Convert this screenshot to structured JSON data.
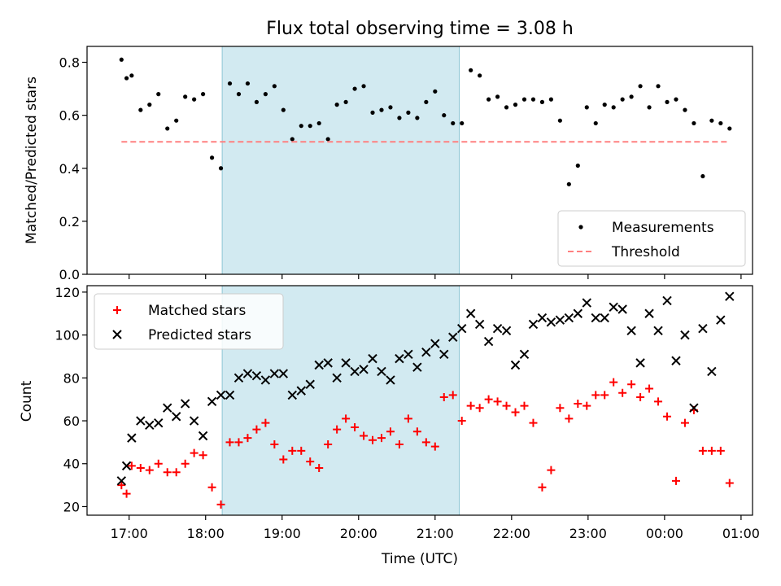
{
  "chart_data": [
    {
      "type": "scatter",
      "title": "Flux total observing time = 3.08 h",
      "xlabel": "",
      "ylabel": "Matched/Predicted stars",
      "ylim": [
        0,
        0.86
      ],
      "yticks": [
        0,
        0.2,
        0.4,
        0.6,
        0.8
      ],
      "ytick_labels": [
        "0.0",
        "0.2",
        "0.4",
        "0.6",
        "0.8"
      ],
      "x_unit": "hours since 00:00 UTC of first night",
      "legend_position": "lower-right",
      "shaded_interval": [
        "18:13",
        "21:19"
      ],
      "shaded_color": "#add8e6",
      "series": [
        {
          "name": "Measurements",
          "marker": "dot",
          "color": "#000000",
          "x": [
            "16:54",
            "16:58",
            "17:02",
            "17:09",
            "17:16",
            "17:23",
            "17:30",
            "17:37",
            "17:44",
            "17:51",
            "17:58",
            "18:05",
            "18:12",
            "18:19",
            "18:26",
            "18:33",
            "18:40",
            "18:47",
            "18:54",
            "19:01",
            "19:08",
            "19:15",
            "19:22",
            "19:29",
            "19:36",
            "19:43",
            "19:50",
            "19:57",
            "20:04",
            "20:11",
            "20:18",
            "20:25",
            "20:32",
            "20:39",
            "20:46",
            "20:53",
            "21:00",
            "21:07",
            "21:14",
            "21:21",
            "21:28",
            "21:35",
            "21:42",
            "21:49",
            "21:56",
            "22:03",
            "22:10",
            "22:17",
            "22:24",
            "22:31",
            "22:38",
            "22:45",
            "22:52",
            "22:59",
            "23:06",
            "23:13",
            "23:20",
            "23:27",
            "23:34",
            "23:41",
            "23:48",
            "23:55",
            "00:02",
            "00:09",
            "00:16",
            "00:23",
            "00:30",
            "00:37",
            "00:44",
            "00:51"
          ],
          "y": [
            0.81,
            0.74,
            0.75,
            0.62,
            0.64,
            0.68,
            0.55,
            0.58,
            0.67,
            0.66,
            0.68,
            0.44,
            0.4,
            0.72,
            0.68,
            0.72,
            0.65,
            0.68,
            0.71,
            0.62,
            0.51,
            0.56,
            0.56,
            0.57,
            0.51,
            0.64,
            0.65,
            0.7,
            0.71,
            0.61,
            0.62,
            0.63,
            0.59,
            0.61,
            0.59,
            0.65,
            0.69,
            0.6,
            0.57,
            0.57,
            0.77,
            0.75,
            0.66,
            0.67,
            0.63,
            0.64,
            0.66,
            0.66,
            0.65,
            0.66,
            0.58,
            0.34,
            0.41,
            0.63,
            0.57,
            0.64,
            0.63,
            0.66,
            0.67,
            0.71,
            0.63,
            0.71,
            0.65,
            0.66,
            0.62,
            0.57,
            0.37,
            0.58,
            0.57,
            0.55
          ]
        },
        {
          "name": "Threshold",
          "style": "dashed",
          "color": "#ff8080",
          "x": [
            "16:54",
            "00:51"
          ],
          "y": [
            0.5,
            0.5
          ]
        }
      ]
    },
    {
      "type": "scatter",
      "title": "",
      "xlabel": "Time (UTC)",
      "ylabel": "Count",
      "ylim": [
        16,
        123
      ],
      "yticks": [
        20,
        40,
        60,
        80,
        100,
        120
      ],
      "ytick_labels": [
        "20",
        "40",
        "60",
        "80",
        "100",
        "120"
      ],
      "x_ticks": [
        "17:00",
        "18:00",
        "19:00",
        "20:00",
        "21:00",
        "22:00",
        "23:00",
        "00:00",
        "01:00"
      ],
      "legend_position": "upper-left",
      "shaded_interval": [
        "18:13",
        "21:19"
      ],
      "shaded_color": "#add8e6",
      "series": [
        {
          "name": "Matched stars",
          "marker": "plus",
          "color": "#ff0000",
          "x": [
            "16:54",
            "16:58",
            "17:02",
            "17:09",
            "17:16",
            "17:23",
            "17:30",
            "17:37",
            "17:44",
            "17:51",
            "17:58",
            "18:05",
            "18:12",
            "18:19",
            "18:26",
            "18:33",
            "18:40",
            "18:47",
            "18:54",
            "19:01",
            "19:08",
            "19:15",
            "19:22",
            "19:29",
            "19:36",
            "19:43",
            "19:50",
            "19:57",
            "20:04",
            "20:11",
            "20:18",
            "20:25",
            "20:32",
            "20:39",
            "20:46",
            "20:53",
            "21:00",
            "21:07",
            "21:14",
            "21:21",
            "21:28",
            "21:35",
            "21:42",
            "21:49",
            "21:56",
            "22:03",
            "22:10",
            "22:17",
            "22:24",
            "22:31",
            "22:38",
            "22:45",
            "22:52",
            "22:59",
            "23:06",
            "23:13",
            "23:20",
            "23:27",
            "23:34",
            "23:41",
            "23:48",
            "23:55",
            "00:02",
            "00:09",
            "00:16",
            "00:23",
            "00:30",
            "00:37",
            "00:44",
            "00:51"
          ],
          "y": [
            30,
            26,
            39,
            38,
            37,
            40,
            36,
            36,
            40,
            45,
            44,
            29,
            21,
            50,
            50,
            52,
            56,
            59,
            49,
            42,
            46,
            46,
            41,
            38,
            49,
            56,
            61,
            57,
            53,
            51,
            52,
            55,
            49,
            61,
            55,
            50,
            48,
            71,
            72,
            60,
            67,
            66,
            70,
            69,
            67,
            64,
            67,
            59,
            29,
            37,
            66,
            61,
            68,
            67,
            72,
            72,
            78,
            73,
            77,
            71,
            75,
            69,
            62,
            32,
            59,
            65,
            46,
            46,
            46,
            31
          ]
        },
        {
          "name": "Predicted stars",
          "marker": "x",
          "color": "#000000",
          "x": [
            "16:54",
            "16:58",
            "17:02",
            "17:09",
            "17:16",
            "17:23",
            "17:30",
            "17:37",
            "17:44",
            "17:51",
            "17:58",
            "18:05",
            "18:12",
            "18:19",
            "18:26",
            "18:33",
            "18:40",
            "18:47",
            "18:54",
            "19:01",
            "19:08",
            "19:15",
            "19:22",
            "19:29",
            "19:36",
            "19:43",
            "19:50",
            "19:57",
            "20:04",
            "20:11",
            "20:18",
            "20:25",
            "20:32",
            "20:39",
            "20:46",
            "20:53",
            "21:00",
            "21:07",
            "21:14",
            "21:21",
            "21:28",
            "21:35",
            "21:42",
            "21:49",
            "21:56",
            "22:03",
            "22:10",
            "22:17",
            "22:24",
            "22:31",
            "22:38",
            "22:45",
            "22:52",
            "22:59",
            "23:06",
            "23:13",
            "23:20",
            "23:27",
            "23:34",
            "23:41",
            "23:48",
            "23:55",
            "00:02",
            "00:09",
            "00:16",
            "00:23",
            "00:30",
            "00:37",
            "00:44",
            "00:51"
          ],
          "y": [
            32,
            39,
            52,
            60,
            58,
            59,
            66,
            62,
            68,
            60,
            53,
            69,
            72,
            72,
            80,
            82,
            81,
            79,
            82,
            82,
            72,
            74,
            77,
            86,
            87,
            80,
            87,
            83,
            84,
            89,
            83,
            79,
            89,
            91,
            85,
            92,
            96,
            91,
            99,
            103,
            110,
            105,
            97,
            103,
            102,
            86,
            91,
            105,
            108,
            106,
            107,
            108,
            110,
            115,
            108,
            108,
            113,
            112,
            102,
            87,
            110,
            102,
            116,
            88,
            100,
            66,
            103,
            83,
            107,
            118
          ]
        }
      ]
    }
  ]
}
